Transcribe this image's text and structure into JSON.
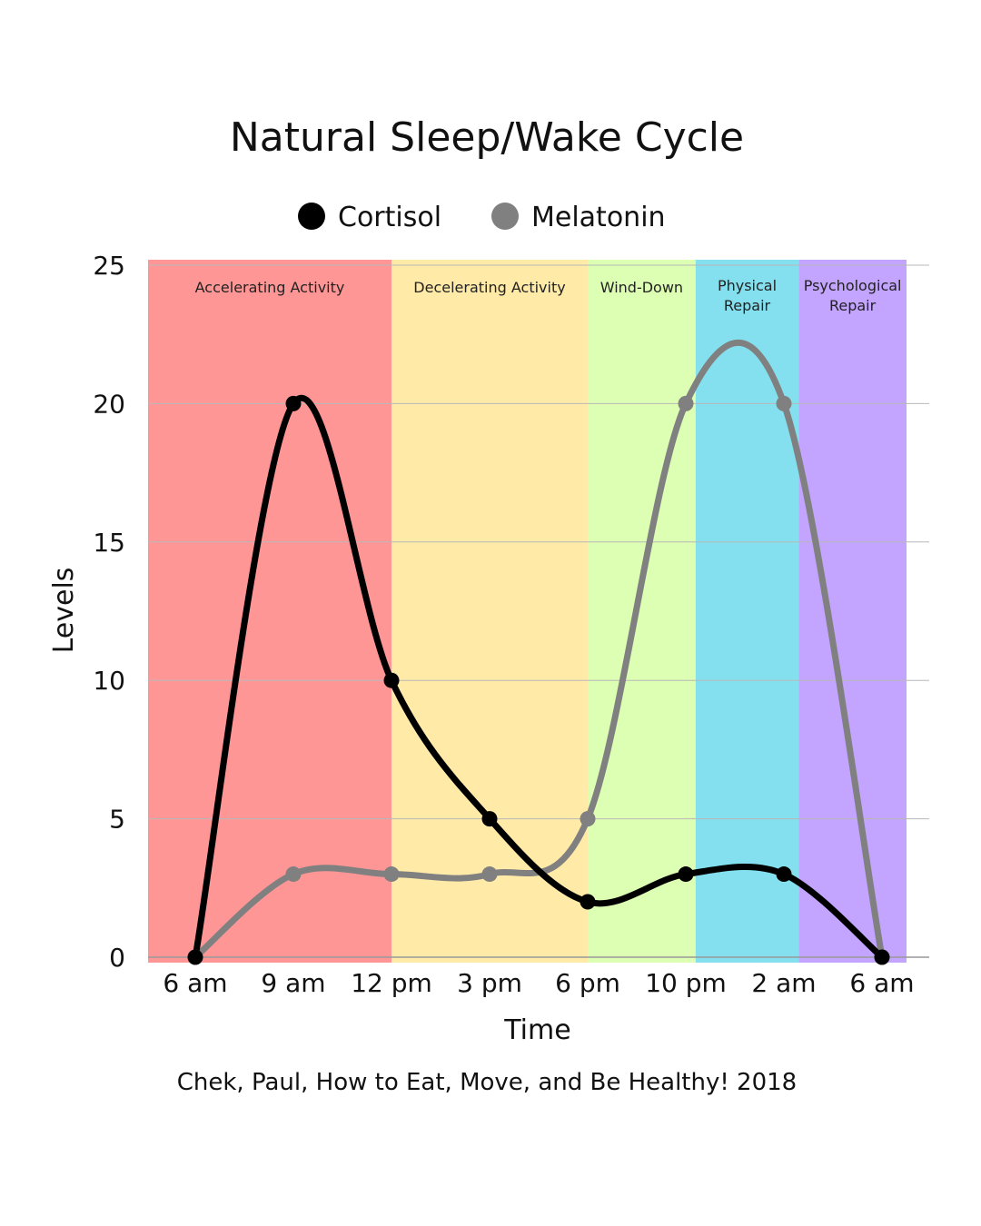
{
  "chart_data": {
    "type": "line",
    "title": "Natural Sleep/Wake Cycle",
    "xlabel": "Time",
    "ylabel": "Levels",
    "ylim": [
      0,
      25
    ],
    "yticks": [
      0,
      5,
      10,
      15,
      20,
      25
    ],
    "grid": true,
    "legend_position": "top",
    "categories": [
      "6 am",
      "9 am",
      "12 pm",
      "3 pm",
      "6 pm",
      "10 pm",
      "2 am",
      "6 am"
    ],
    "series": [
      {
        "name": "Cortisol",
        "color": "#000000",
        "values": [
          0,
          20,
          10,
          5,
          2,
          3,
          3,
          0
        ]
      },
      {
        "name": "Melatonin",
        "color": "#808080",
        "values": [
          0,
          3,
          3,
          3,
          5,
          20,
          20,
          0
        ]
      }
    ],
    "bands": [
      {
        "label": [
          "Accelerating Activity"
        ],
        "from": 0,
        "to": 2,
        "color": "#ff9696"
      },
      {
        "label": [
          "Decelerating Activity"
        ],
        "from": 2,
        "to": 4,
        "color": "#ffeaa8"
      },
      {
        "label": [
          "Wind-Down"
        ],
        "from": 4,
        "to": 5.1,
        "color": "#ddffb3"
      },
      {
        "label": [
          "Physical",
          "Repair"
        ],
        "from": 5.1,
        "to": 6.15,
        "color": "#84e0ee"
      },
      {
        "label": [
          "Psychological",
          "Repair"
        ],
        "from": 6.15,
        "to": 7.25,
        "color": "#c3a4ff"
      }
    ],
    "source": "Chek, Paul, How to Eat, Move, and Be Healthy! 2018"
  }
}
